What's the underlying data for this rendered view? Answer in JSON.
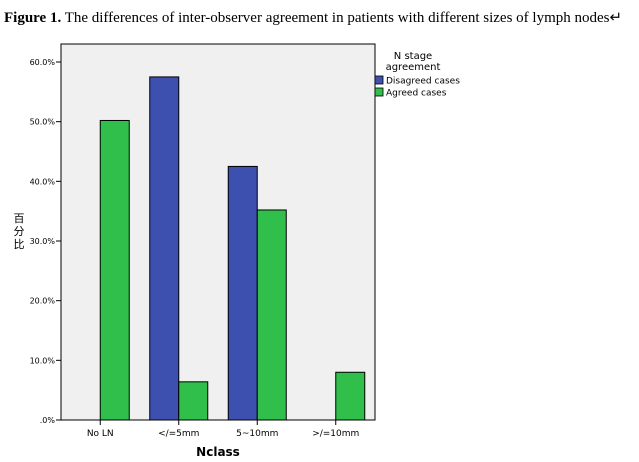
{
  "caption": {
    "label": "Figure 1.",
    "text": " The differences of inter-observer agreement in patients with different sizes of lymph nodes↵"
  },
  "chart_data": {
    "type": "bar",
    "categories": [
      "No LN",
      "</=5mm",
      "5~10mm",
      ">/=10mm"
    ],
    "series": [
      {
        "name": "Disagreed cases",
        "values": [
          0,
          57.5,
          42.5,
          0
        ],
        "color": "#3d50b0"
      },
      {
        "name": "Agreed cases",
        "values": [
          50.2,
          6.4,
          35.2,
          8.0
        ],
        "color": "#2fbf4a"
      }
    ],
    "xlabel": "Nclass",
    "ylabel": "百分比",
    "ylim": [
      0,
      60
    ],
    "yticks": [
      0,
      10,
      20,
      30,
      40,
      50,
      60
    ],
    "ytick_labels": [
      ".0%",
      "10.0%",
      "20.0%",
      "30.0%",
      "40.0%",
      "50.0%",
      "60.0%"
    ],
    "legend": {
      "title_lines": [
        "N stage",
        "agreement"
      ],
      "placement": "right"
    },
    "plot_background": "#f0f0f0",
    "grid": false
  }
}
